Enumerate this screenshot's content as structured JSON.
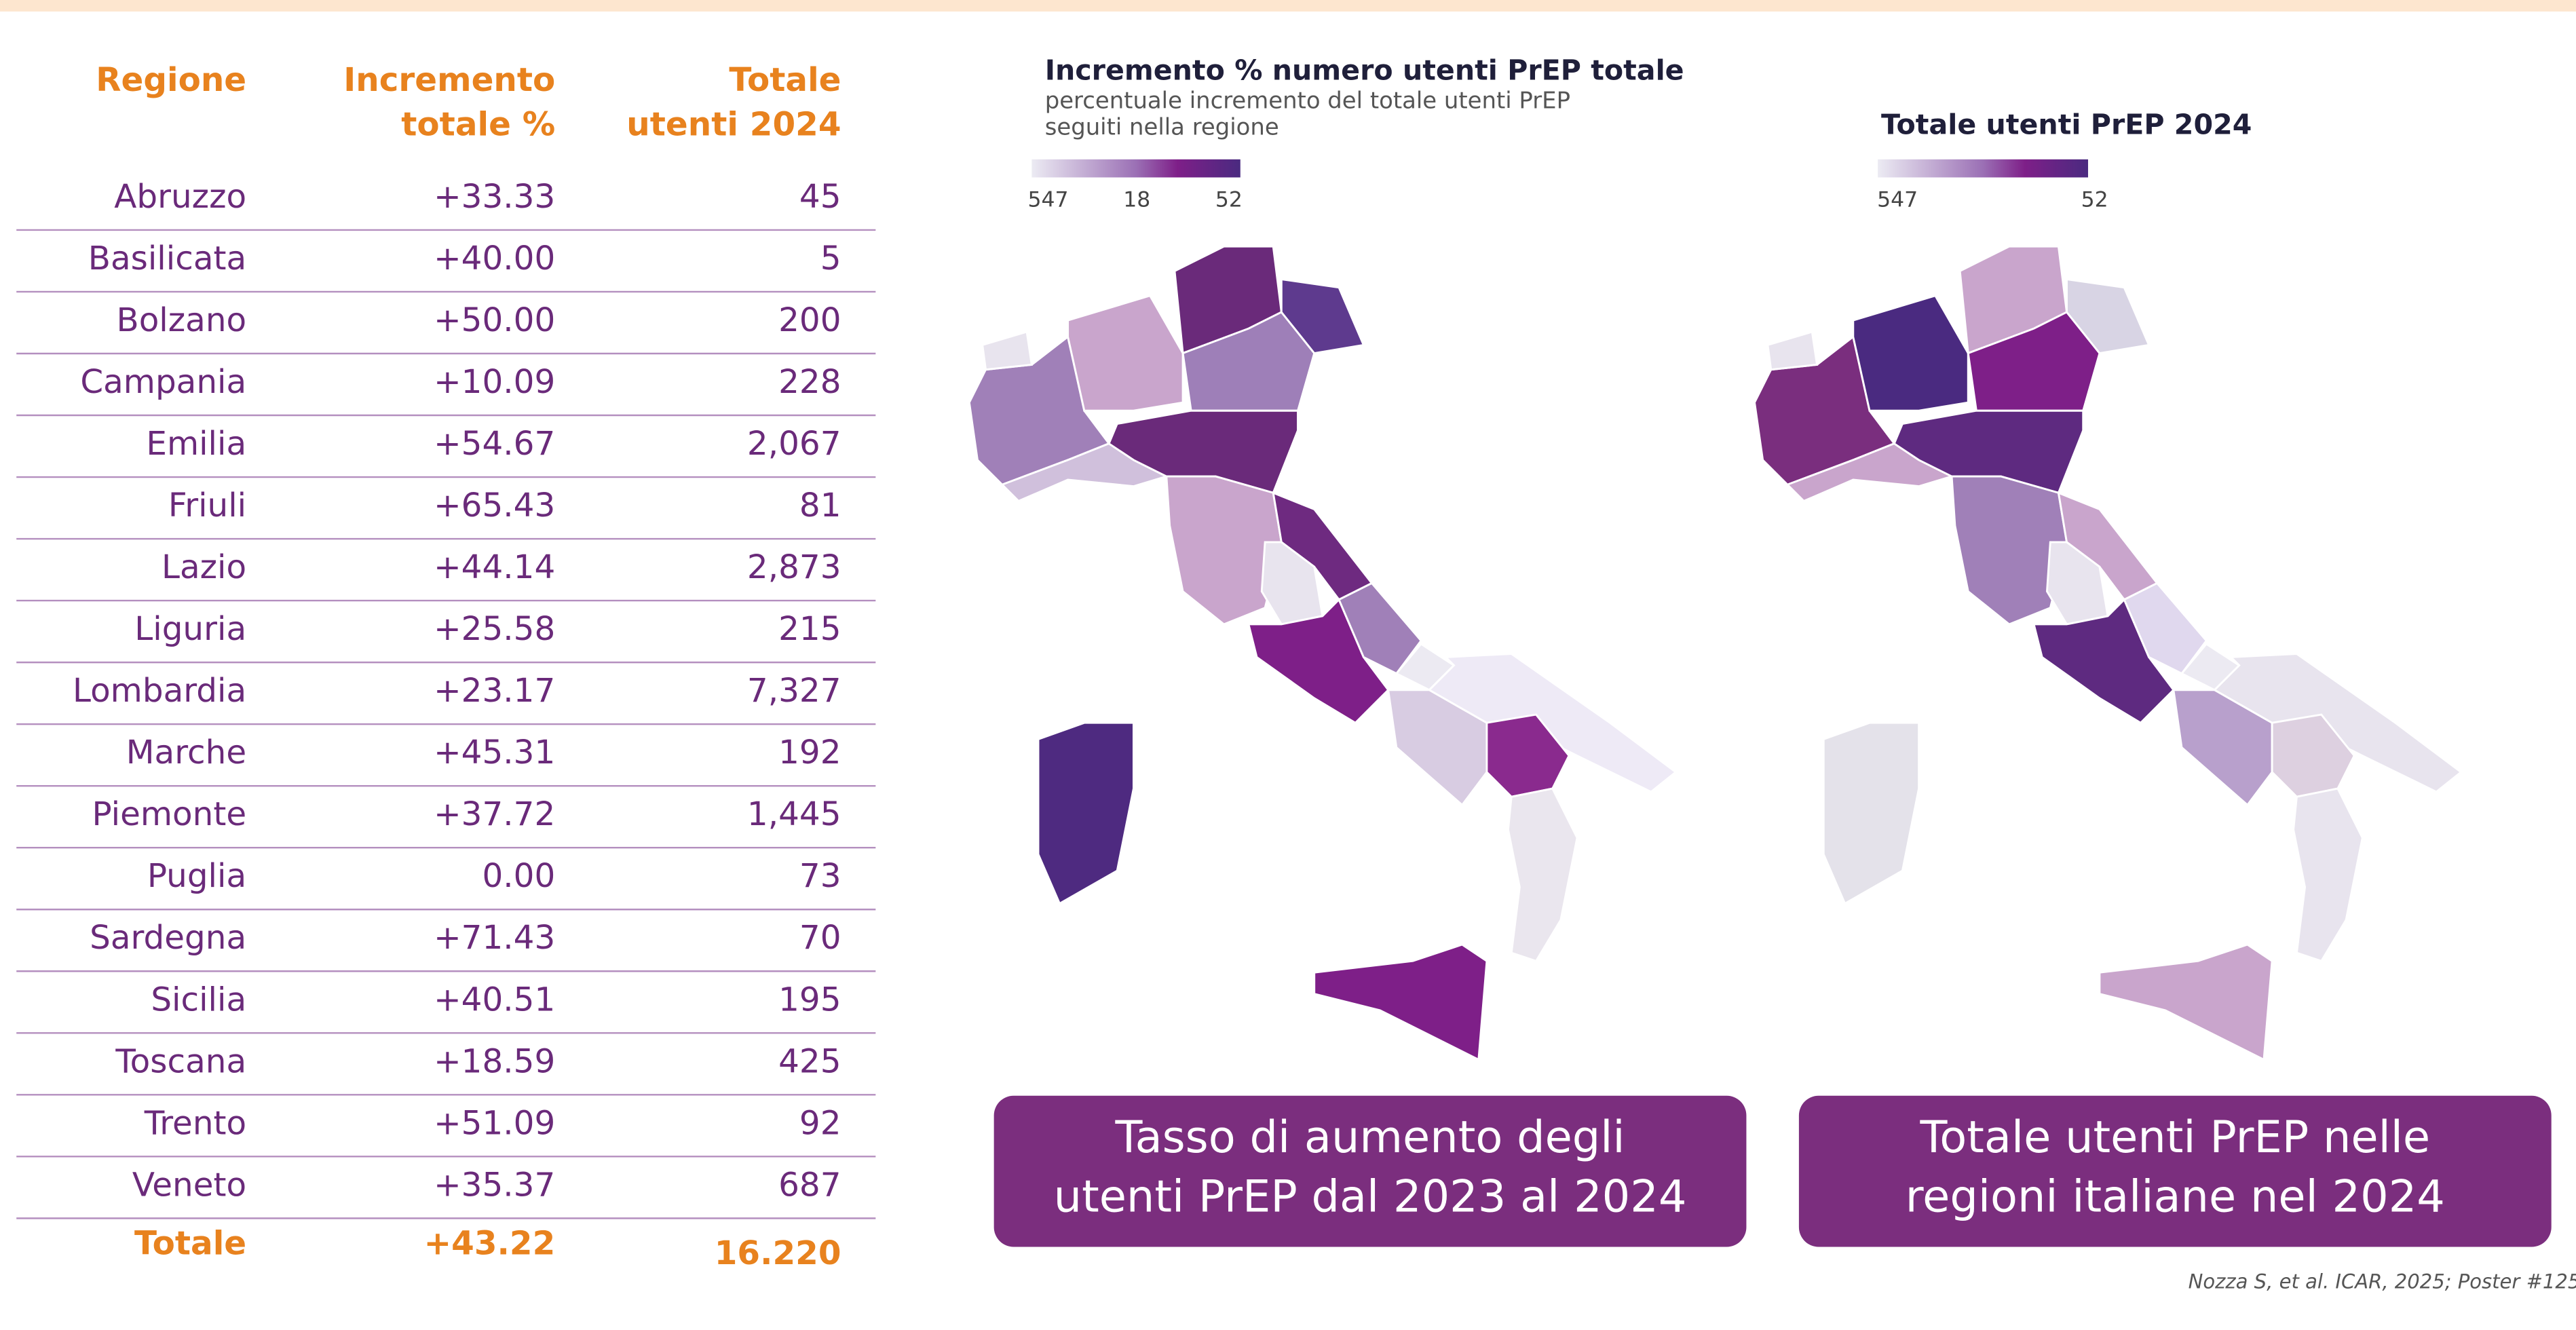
{
  "table": {
    "columns": [
      [
        "Regione"
      ],
      [
        "Incremento",
        "totale %"
      ],
      [
        "Totale",
        "utenti 2024"
      ]
    ],
    "rows": [
      [
        "Abruzzo",
        "+33.33",
        "45"
      ],
      [
        "Basilicata",
        "+40.00",
        "5"
      ],
      [
        "Bolzano",
        "+50.00",
        "200"
      ],
      [
        "Campania",
        "+10.09",
        "228"
      ],
      [
        "Emilia",
        "+54.67",
        "2,067"
      ],
      [
        "Friuli",
        "+65.43",
        "81"
      ],
      [
        "Lazio",
        "+44.14",
        "2,873"
      ],
      [
        "Liguria",
        "+25.58",
        "215"
      ],
      [
        "Lombardia",
        "+23.17",
        "7,327"
      ],
      [
        "Marche",
        "+45.31",
        "192"
      ],
      [
        "Piemonte",
        "+37.72",
        "1,445"
      ],
      [
        "Puglia",
        "0.00",
        "73"
      ],
      [
        "Sardegna",
        "+71.43",
        "70"
      ],
      [
        "Sicilia",
        "+40.51",
        "195"
      ],
      [
        "Toscana",
        "+18.59",
        "425"
      ],
      [
        "Trento",
        "+51.09",
        "92"
      ],
      [
        "Veneto",
        "+35.37",
        "687"
      ]
    ],
    "total": [
      "Totale",
      "+43.22",
      "16.220"
    ]
  },
  "maps": [
    {
      "title": "Incremento % numero utenti PrEP totale",
      "subtitle": [
        "percentuale incremento del totale utenti PrEP",
        "seguiti nella regione"
      ],
      "legend": [
        "547",
        "18",
        "52"
      ],
      "caption": [
        "Tasso di aumento degli",
        "utenti PrEP dal 2023 al 2024"
      ]
    },
    {
      "title": "Totale utenti PrEP 2024",
      "legend": [
        "547",
        "52"
      ],
      "caption": [
        "Totale utenti PrEP nelle",
        "regioni italiane nel 2024"
      ]
    }
  ],
  "citation": "Nozza S, et al. ICAR, 2025; Poster #125"
}
